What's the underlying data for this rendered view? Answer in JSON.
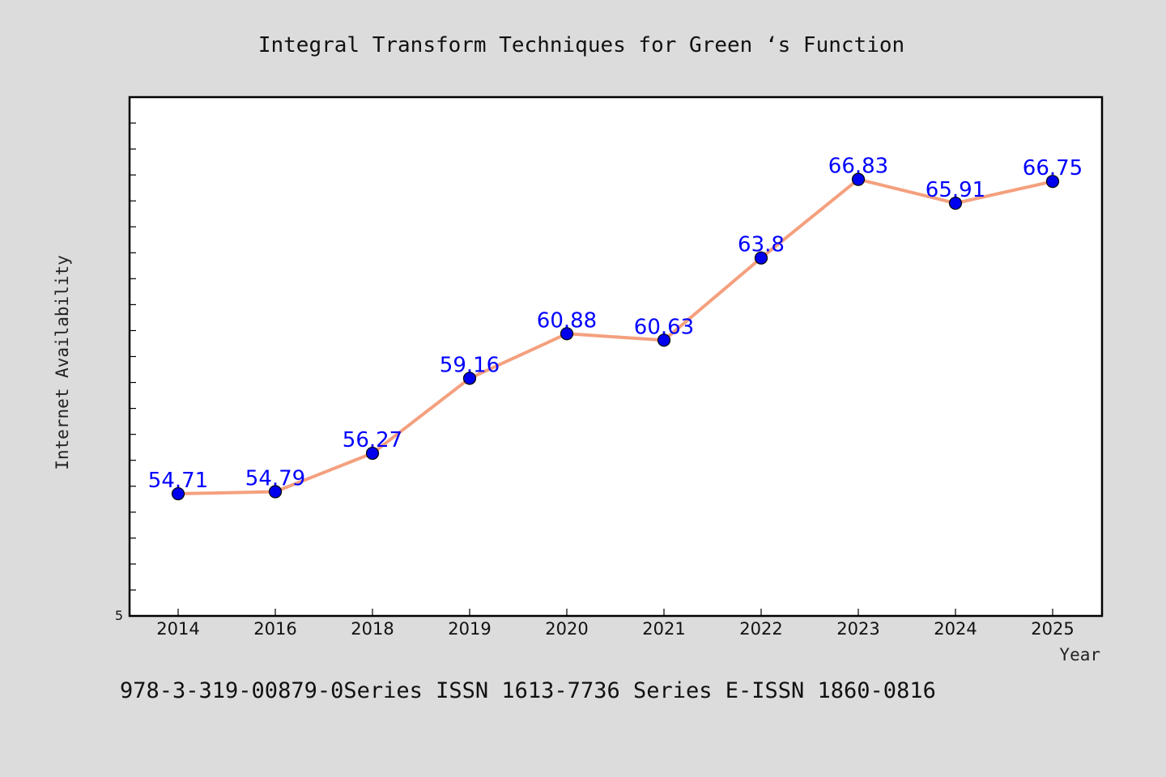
{
  "colors": {
    "background": "#dcdcdc",
    "plot_background": "#ffffff",
    "line": "#f4a07e",
    "marker": "#0000ee",
    "data_label": "#0000ff",
    "axis": "#000000"
  },
  "footer": "978-3-319-00879-0Series ISSN 1613-7736 Series E-ISSN 1860-0816",
  "chart_data": {
    "type": "line",
    "title": "Integral Transform Techniques for Green ‘s Function",
    "xlabel": "Year",
    "ylabel": "Internet Availability",
    "categories": [
      "2014",
      "2016",
      "2018",
      "2019",
      "2020",
      "2021",
      "2022",
      "2023",
      "2024",
      "2025"
    ],
    "series": [
      {
        "values": [
          54.71,
          54.79,
          56.27,
          59.16,
          60.88,
          60.63,
          63.8,
          66.83,
          65.91,
          66.75
        ],
        "labels": [
          "54.71",
          "54.79",
          "56.27",
          "59.16",
          "60.88",
          "60.63",
          "63.8",
          "66.83",
          "65.91",
          "66.75"
        ]
      }
    ],
    "ylim": [
      50,
      70
    ],
    "y_ticklabel": "5",
    "grid": false,
    "legend": "none"
  }
}
